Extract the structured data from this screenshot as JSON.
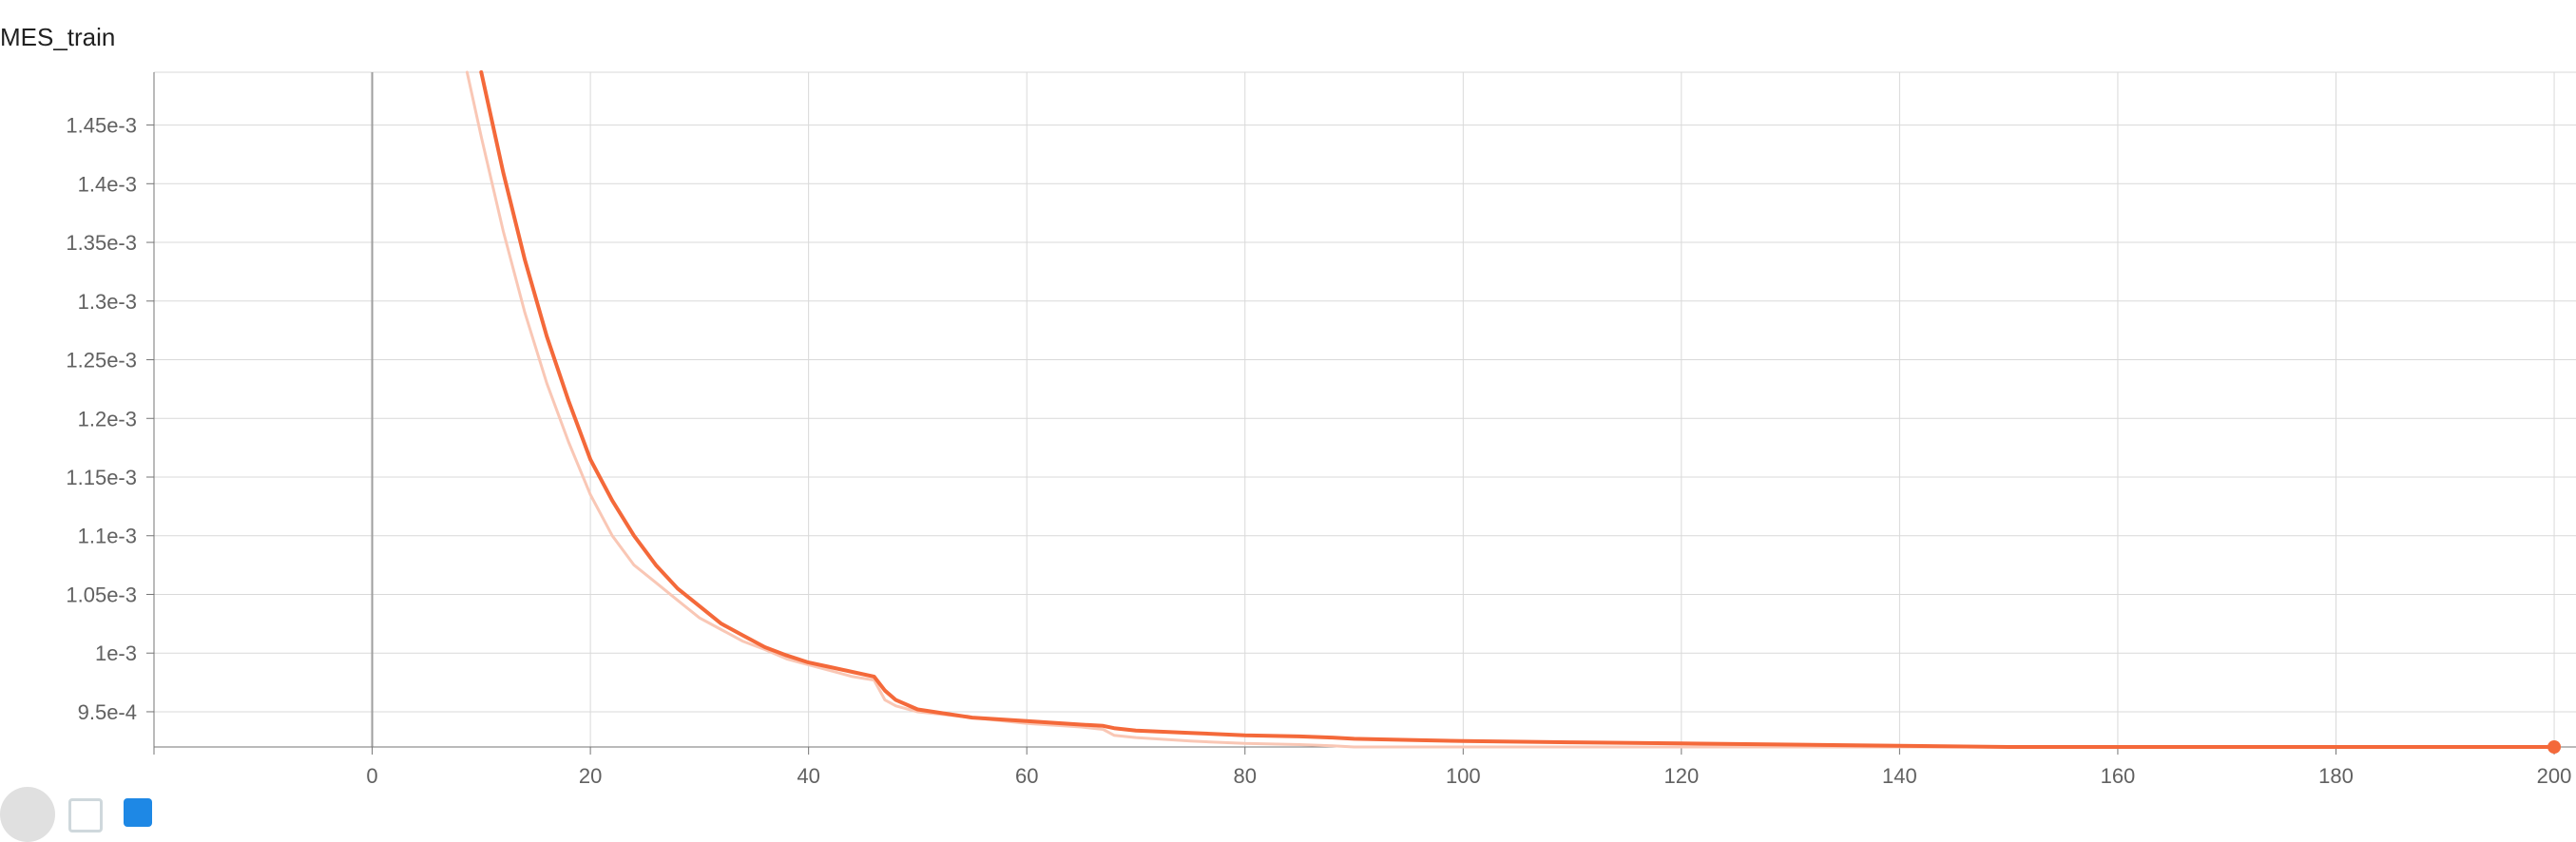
{
  "card": {
    "title": "MES_train"
  },
  "colors": {
    "smoothed": "#f4693a",
    "raw": "#f9c7b5",
    "grid": "#d9d9d9",
    "zero_axis": "#9e9e9e"
  },
  "toolbar": {
    "icons": [
      "expand-icon",
      "data-toggle-icon",
      "settings-icon"
    ]
  },
  "chart_data": {
    "type": "line",
    "title": "MES_train",
    "xlabel": "",
    "ylabel": "",
    "xlim": [
      -20,
      202
    ],
    "ylim": [
      0.00092,
      0.001495
    ],
    "x_ticks": [
      0,
      20,
      40,
      60,
      80,
      100,
      120,
      140,
      160,
      180,
      200
    ],
    "y_ticks": [
      0.00095,
      0.001,
      0.00105,
      0.0011,
      0.00115,
      0.0012,
      0.00125,
      0.0013,
      0.00135,
      0.0014,
      0.00145
    ],
    "y_tick_labels": [
      "9.5e-4",
      "1e-3",
      "1.05e-3",
      "1.1e-3",
      "1.15e-3",
      "1.2e-3",
      "1.25e-3",
      "1.3e-3",
      "1.35e-3",
      "1.4e-3",
      "1.45e-3"
    ],
    "grid": true,
    "legend": "none",
    "series": [
      {
        "role": "raw",
        "x": [
          8.7,
          10,
          12,
          14,
          16,
          18,
          20,
          22,
          24,
          26,
          28,
          30,
          32,
          34,
          36,
          38,
          40,
          42,
          44,
          46,
          47,
          48,
          50,
          55,
          60,
          65,
          67,
          68,
          70,
          75,
          80,
          85,
          88,
          90,
          100,
          110,
          120,
          130,
          140,
          150,
          160,
          170,
          180,
          190,
          200
        ],
        "y": [
          0.001495,
          0.00144,
          0.00136,
          0.00129,
          0.00123,
          0.00118,
          0.001135,
          0.0011,
          0.001075,
          0.00106,
          0.001045,
          0.00103,
          0.00102,
          0.00101,
          0.001003,
          0.000995,
          0.00099,
          0.000985,
          0.00098,
          0.000977,
          0.00096,
          0.000955,
          0.00095,
          0.000945,
          0.00094,
          0.000937,
          0.000935,
          0.00093,
          0.000928,
          0.000925,
          0.000923,
          0.000922,
          0.000921,
          0.00092,
          0.00092,
          0.00092,
          0.00092,
          0.00092,
          0.00092,
          0.00092,
          0.00092,
          0.00092,
          0.00092,
          0.00092,
          0.00092
        ]
      },
      {
        "role": "smoothed",
        "x": [
          10,
          12,
          14,
          16,
          18,
          20,
          22,
          24,
          26,
          28,
          30,
          32,
          34,
          36,
          38,
          40,
          42,
          44,
          46,
          47,
          48,
          50,
          55,
          60,
          65,
          67,
          68,
          70,
          75,
          80,
          85,
          88,
          90,
          95,
          100,
          110,
          120,
          130,
          140,
          150,
          160,
          170,
          180,
          190,
          200
        ],
        "y": [
          0.001495,
          0.00141,
          0.001335,
          0.00127,
          0.001215,
          0.001165,
          0.00113,
          0.0011,
          0.001075,
          0.001055,
          0.00104,
          0.001025,
          0.001015,
          0.001005,
          0.000998,
          0.000992,
          0.000988,
          0.000984,
          0.00098,
          0.000968,
          0.00096,
          0.000952,
          0.000945,
          0.000942,
          0.000939,
          0.000938,
          0.000936,
          0.000934,
          0.000932,
          0.00093,
          0.000929,
          0.000928,
          0.000927,
          0.000926,
          0.000925,
          0.000924,
          0.000923,
          0.000922,
          0.000921,
          0.00092,
          0.00092,
          0.00092,
          0.00092,
          0.00092,
          0.00092
        ]
      }
    ]
  }
}
